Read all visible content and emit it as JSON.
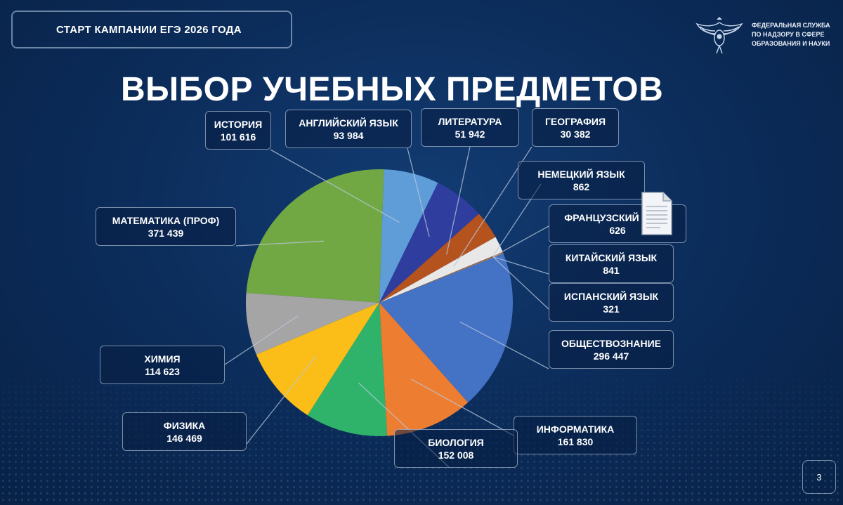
{
  "header": {
    "campaign_label": "СТАРТ КАМПАНИИ ЕГЭ 2026 ГОДА"
  },
  "agency": {
    "lines": [
      "ФЕДЕРАЛЬНАЯ СЛУЖБА",
      "ПО НАДЗОРУ В СФЕРЕ",
      "ОБРАЗОВАНИЯ И НАУКИ"
    ]
  },
  "page_number": "3",
  "icons": {
    "logo": "eagle-emblem-icon",
    "document": "document-icon"
  },
  "chart_data": {
    "type": "pie",
    "title": "ВЫБОР УЧЕБНЫХ ПРЕДМЕТОВ",
    "start_angle_deg": -88,
    "direction": "counterclockwise",
    "slices": [
      {
        "label": "МАТЕМАТИКА (ПРОФ)",
        "value_text": "371 439",
        "value": 371439,
        "color": "#72a843"
      },
      {
        "label": "ХИМИЯ",
        "value_text": "114 623",
        "value": 114623,
        "color": "#a5a5a5"
      },
      {
        "label": "ФИЗИКА",
        "value_text": "146 469",
        "value": 146469,
        "color": "#fbbd18"
      },
      {
        "label": "БИОЛОГИЯ",
        "value_text": "152 008",
        "value": 152008,
        "color": "#2fb36b"
      },
      {
        "label": "ИНФОРМАТИКА",
        "value_text": "161 830",
        "value": 161830,
        "color": "#ed7d31"
      },
      {
        "label": "ОБЩЕСТВОЗНАНИЕ",
        "value_text": "296 447",
        "value": 296447,
        "color": "#4472c4"
      },
      {
        "label": "ИСПАНСКИЙ ЯЗЫК",
        "value_text": "321",
        "value": 321,
        "color": "#c9a15f"
      },
      {
        "label": "КИТАЙСКИЙ ЯЗЫК",
        "value_text": "841",
        "value": 841,
        "color": "#f4a04a"
      },
      {
        "label": "ФРАНЦУЗСКИЙ ЯЗЫК",
        "value_text": "626",
        "value": 626,
        "color": "#c05a1a"
      },
      {
        "label": "НЕМЕЦКИЙ ЯЗЫК",
        "value_text": "862",
        "value": 862,
        "color": "#7a3e14"
      },
      {
        "label": "ГЕОГРАФИЯ",
        "value_text": "30 382",
        "value": 30382,
        "color": "#e8e8e8"
      },
      {
        "label": "ЛИТЕРАТУРА",
        "value_text": "51 942",
        "value": 51942,
        "color": "#b5531f"
      },
      {
        "label": "АНГЛИЙСКИЙ ЯЗЫК",
        "value_text": "93 984",
        "value": 93984,
        "color": "#2e3d9e"
      },
      {
        "label": "ИСТОРИЯ",
        "value_text": "101 616",
        "value": 101616,
        "color": "#5e9dd8"
      }
    ]
  }
}
